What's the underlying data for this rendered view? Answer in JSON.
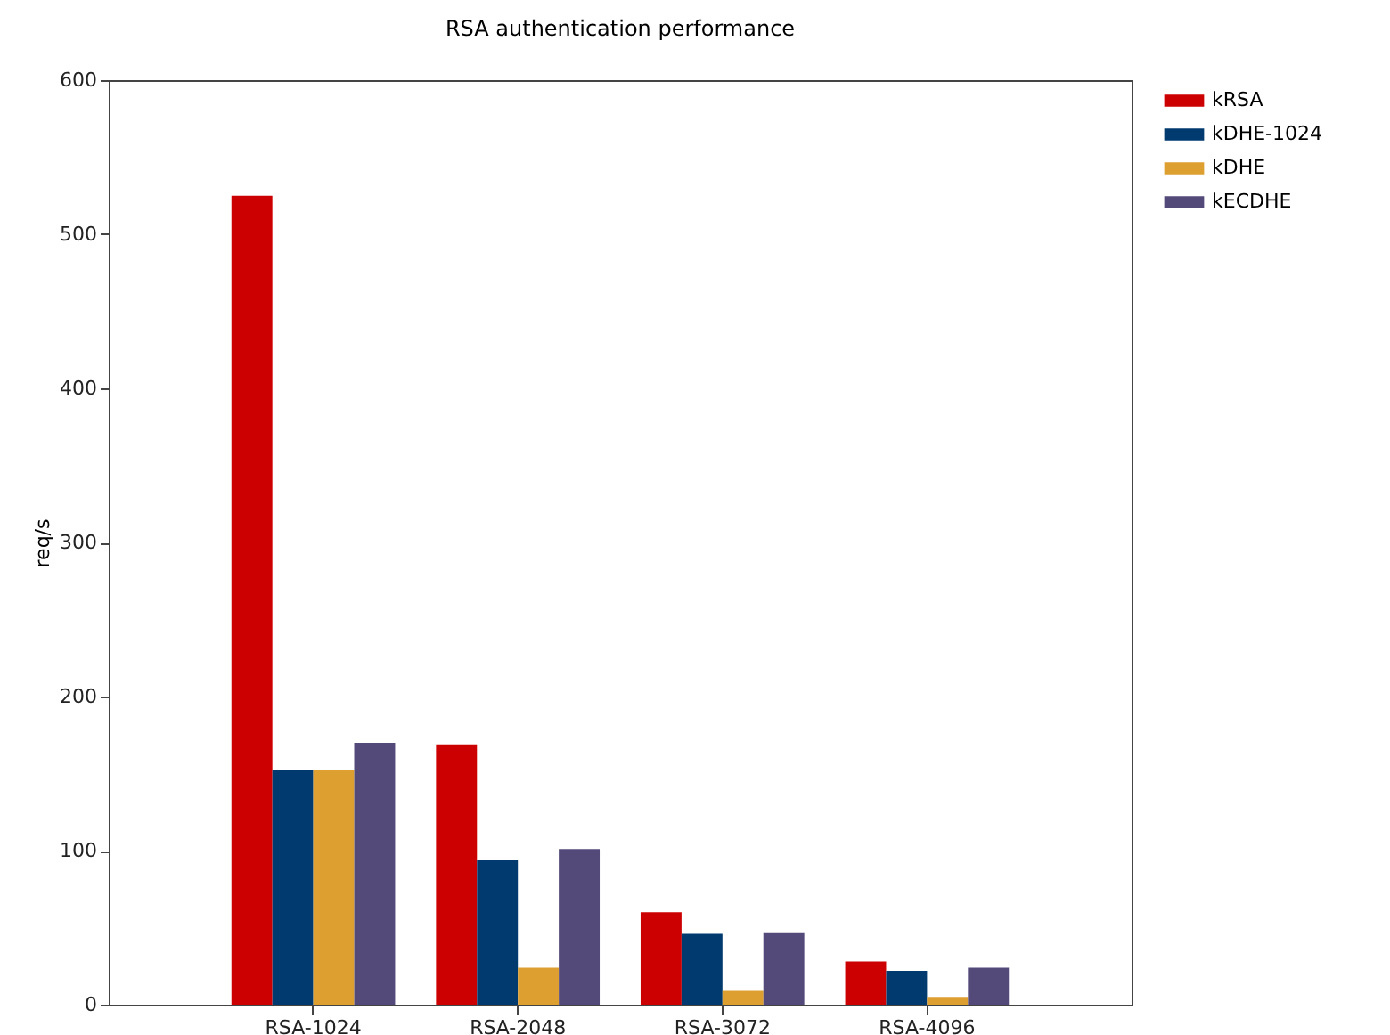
{
  "chart_data": {
    "type": "bar",
    "title": "RSA authentication performance",
    "ylabel": "req/s",
    "categories": [
      "RSA-1024",
      "RSA-2048",
      "RSA-3072",
      "RSA-4096"
    ],
    "series": [
      {
        "name": "kRSA",
        "color": "#cc0000",
        "values": [
          525,
          169,
          60,
          28
        ]
      },
      {
        "name": "kDHE-1024",
        "color": "#003a6e",
        "values": [
          152,
          94,
          46,
          22
        ]
      },
      {
        "name": "kDHE",
        "color": "#dd9f30",
        "values": [
          152,
          24,
          9,
          5
        ]
      },
      {
        "name": "kECDHE",
        "color": "#544a7a",
        "values": [
          170,
          101,
          47,
          24
        ]
      }
    ],
    "ylim": [
      0,
      600
    ],
    "yticks": [
      0,
      100,
      200,
      300,
      400,
      500,
      600
    ],
    "grid": false,
    "legend": "top right"
  }
}
